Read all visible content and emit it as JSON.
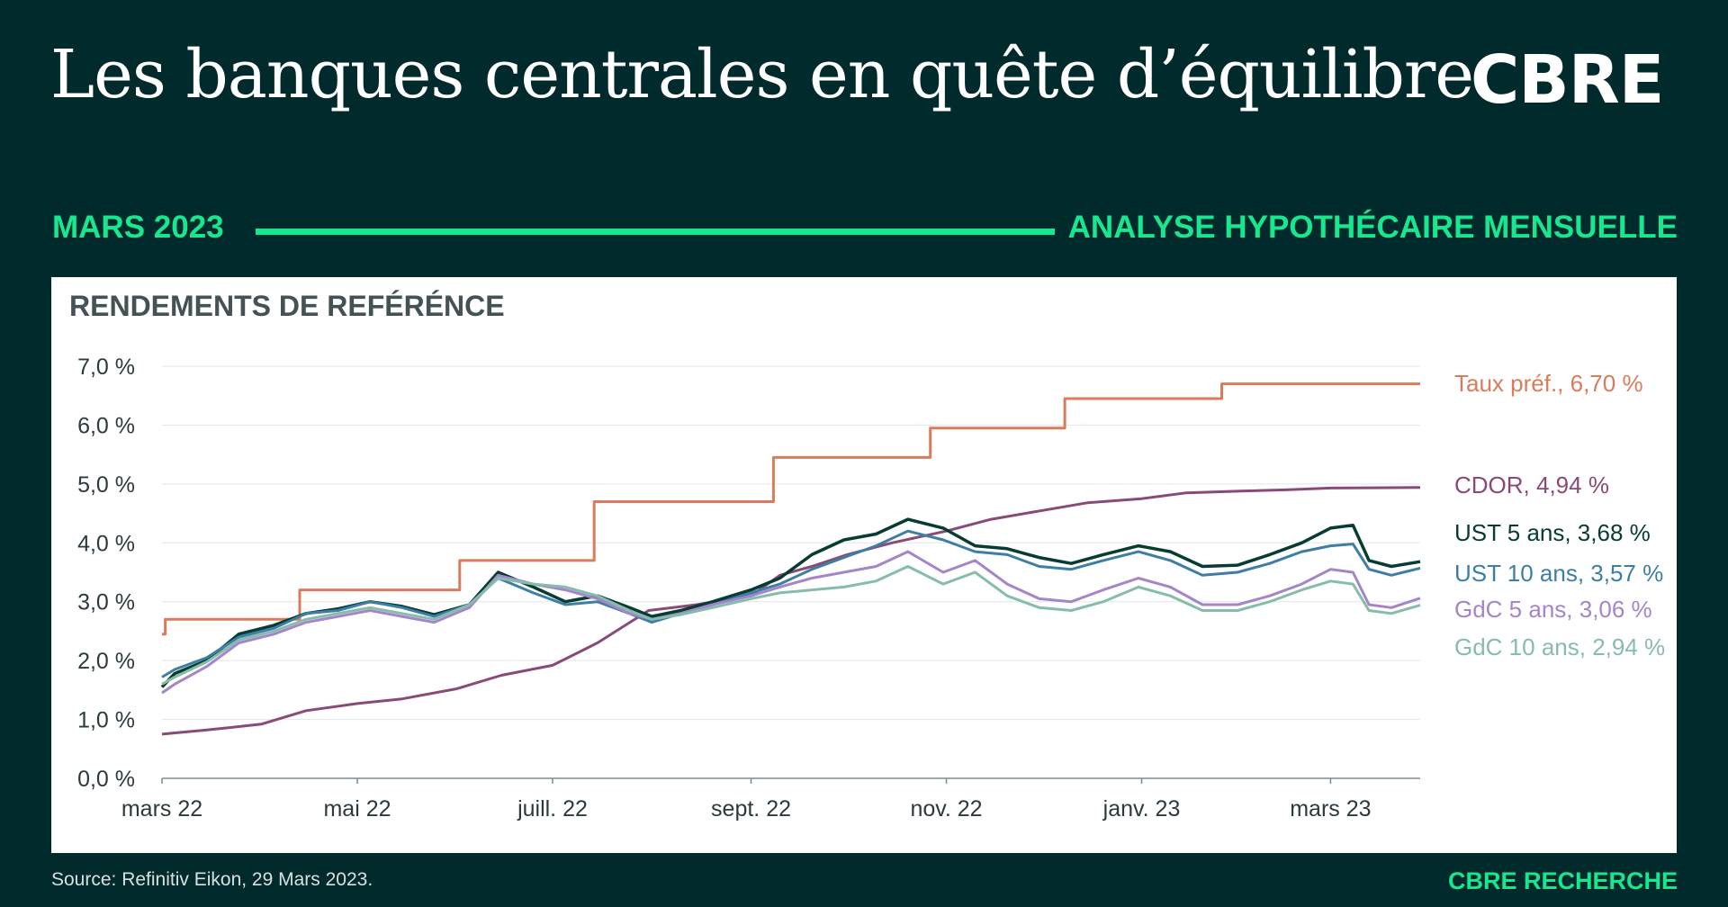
{
  "header": {
    "title": "Les banques centrales en quête d’équilibre",
    "logo": "CBRE"
  },
  "band": {
    "left": "MARS 2023",
    "right": "ANALYSE HYPOTHÉCAIRE MENSUELLE"
  },
  "footer": {
    "source": "Source: Refinitiv Eikon, 29 Mars 2023.",
    "credit": "CBRE RECHERCHE"
  },
  "colors": {
    "background": "#012a2d",
    "accent": "#17e88f",
    "taux": "#d97c5b",
    "cdor": "#8a4a78",
    "ust5": "#073c32",
    "ust10": "#3d7ea6",
    "gdc5": "#a585c9",
    "gdc10": "#86bcab"
  },
  "chart_data": {
    "type": "line",
    "title": "RENDEMENTS DE REFÉRÉNCE",
    "xlabel": "",
    "ylabel": "",
    "ylim": [
      0,
      7
    ],
    "y_ticks": [
      "0,0 %",
      "1,0 %",
      "2,0 %",
      "3,0 %",
      "4,0 %",
      "5,0 %",
      "6,0 %",
      "7,0 %"
    ],
    "x_range": [
      "2022-03-01",
      "2023-03-29"
    ],
    "x_ticks": [
      {
        "date": "2022-03-01",
        "label": "mars 22"
      },
      {
        "date": "2022-05-01",
        "label": "mai 22"
      },
      {
        "date": "2022-07-01",
        "label": "juill. 22"
      },
      {
        "date": "2022-09-01",
        "label": "sept. 22"
      },
      {
        "date": "2022-11-01",
        "label": "nov. 22"
      },
      {
        "date": "2023-01-01",
        "label": "janv. 23"
      },
      {
        "date": "2023-03-01",
        "label": "mars 23"
      }
    ],
    "grid": true,
    "legend": "right",
    "series": [
      {
        "name": "Taux préf.",
        "label": "Taux préf., 6,70 %",
        "color_key": "taux",
        "step": true,
        "points": [
          [
            "2022-03-01",
            2.45
          ],
          [
            "2022-03-02",
            2.7
          ],
          [
            "2022-04-13",
            3.2
          ],
          [
            "2022-06-02",
            3.7
          ],
          [
            "2022-07-14",
            4.7
          ],
          [
            "2022-09-08",
            5.45
          ],
          [
            "2022-10-27",
            5.95
          ],
          [
            "2022-12-08",
            6.45
          ],
          [
            "2023-01-26",
            6.7
          ],
          [
            "2023-03-29",
            6.7
          ]
        ]
      },
      {
        "name": "CDOR",
        "label": "CDOR, 4,94 %",
        "color_key": "cdor",
        "points": [
          [
            "2022-03-01",
            0.75
          ],
          [
            "2022-03-15",
            0.82
          ],
          [
            "2022-04-01",
            0.92
          ],
          [
            "2022-04-15",
            1.15
          ],
          [
            "2022-05-01",
            1.27
          ],
          [
            "2022-05-15",
            1.35
          ],
          [
            "2022-06-01",
            1.52
          ],
          [
            "2022-06-15",
            1.75
          ],
          [
            "2022-07-01",
            1.92
          ],
          [
            "2022-07-15",
            2.3
          ],
          [
            "2022-07-31",
            2.85
          ],
          [
            "2022-08-15",
            2.95
          ],
          [
            "2022-09-01",
            3.1
          ],
          [
            "2022-09-10",
            3.45
          ],
          [
            "2022-09-20",
            3.6
          ],
          [
            "2022-10-01",
            3.8
          ],
          [
            "2022-10-15",
            4.0
          ],
          [
            "2022-11-01",
            4.2
          ],
          [
            "2022-11-15",
            4.4
          ],
          [
            "2022-12-01",
            4.55
          ],
          [
            "2022-12-15",
            4.68
          ],
          [
            "2023-01-01",
            4.75
          ],
          [
            "2023-01-15",
            4.85
          ],
          [
            "2023-02-01",
            4.88
          ],
          [
            "2023-02-15",
            4.9
          ],
          [
            "2023-03-01",
            4.93
          ],
          [
            "2023-03-29",
            4.94
          ]
        ]
      },
      {
        "name": "UST 5 ans",
        "label": "UST 5 ans, 3,68 %",
        "color_key": "ust5",
        "points": [
          [
            "2022-03-01",
            1.55
          ],
          [
            "2022-03-05",
            1.78
          ],
          [
            "2022-03-15",
            2.0
          ],
          [
            "2022-03-25",
            2.45
          ],
          [
            "2022-04-05",
            2.6
          ],
          [
            "2022-04-15",
            2.8
          ],
          [
            "2022-04-25",
            2.88
          ],
          [
            "2022-05-05",
            3.0
          ],
          [
            "2022-05-15",
            2.92
          ],
          [
            "2022-05-25",
            2.78
          ],
          [
            "2022-06-05",
            2.95
          ],
          [
            "2022-06-14",
            3.5
          ],
          [
            "2022-06-25",
            3.25
          ],
          [
            "2022-07-05",
            3.0
          ],
          [
            "2022-07-15",
            3.1
          ],
          [
            "2022-07-25",
            2.9
          ],
          [
            "2022-08-01",
            2.75
          ],
          [
            "2022-08-10",
            2.85
          ],
          [
            "2022-08-20",
            3.0
          ],
          [
            "2022-09-01",
            3.2
          ],
          [
            "2022-09-10",
            3.4
          ],
          [
            "2022-09-20",
            3.8
          ],
          [
            "2022-09-30",
            4.05
          ],
          [
            "2022-10-10",
            4.15
          ],
          [
            "2022-10-20",
            4.4
          ],
          [
            "2022-10-31",
            4.25
          ],
          [
            "2022-11-10",
            3.95
          ],
          [
            "2022-11-20",
            3.9
          ],
          [
            "2022-11-30",
            3.75
          ],
          [
            "2022-12-10",
            3.65
          ],
          [
            "2022-12-20",
            3.8
          ],
          [
            "2022-12-31",
            3.95
          ],
          [
            "2023-01-10",
            3.85
          ],
          [
            "2023-01-20",
            3.6
          ],
          [
            "2023-01-31",
            3.62
          ],
          [
            "2023-02-10",
            3.8
          ],
          [
            "2023-02-20",
            4.0
          ],
          [
            "2023-03-01",
            4.25
          ],
          [
            "2023-03-08",
            4.3
          ],
          [
            "2023-03-13",
            3.7
          ],
          [
            "2023-03-20",
            3.6
          ],
          [
            "2023-03-29",
            3.68
          ]
        ]
      },
      {
        "name": "UST 10 ans",
        "label": "UST 10 ans, 3,57 %",
        "color_key": "ust10",
        "points": [
          [
            "2022-03-01",
            1.72
          ],
          [
            "2022-03-05",
            1.85
          ],
          [
            "2022-03-15",
            2.05
          ],
          [
            "2022-03-25",
            2.4
          ],
          [
            "2022-04-05",
            2.55
          ],
          [
            "2022-04-15",
            2.8
          ],
          [
            "2022-04-25",
            2.85
          ],
          [
            "2022-05-05",
            3.0
          ],
          [
            "2022-05-15",
            2.9
          ],
          [
            "2022-05-25",
            2.75
          ],
          [
            "2022-06-05",
            2.95
          ],
          [
            "2022-06-14",
            3.4
          ],
          [
            "2022-06-25",
            3.15
          ],
          [
            "2022-07-05",
            2.95
          ],
          [
            "2022-07-15",
            3.0
          ],
          [
            "2022-07-25",
            2.8
          ],
          [
            "2022-08-01",
            2.65
          ],
          [
            "2022-08-10",
            2.8
          ],
          [
            "2022-08-20",
            2.95
          ],
          [
            "2022-09-01",
            3.15
          ],
          [
            "2022-09-10",
            3.3
          ],
          [
            "2022-09-20",
            3.55
          ],
          [
            "2022-09-30",
            3.75
          ],
          [
            "2022-10-10",
            3.95
          ],
          [
            "2022-10-20",
            4.2
          ],
          [
            "2022-10-31",
            4.05
          ],
          [
            "2022-11-10",
            3.85
          ],
          [
            "2022-11-20",
            3.8
          ],
          [
            "2022-11-30",
            3.6
          ],
          [
            "2022-12-10",
            3.55
          ],
          [
            "2022-12-20",
            3.7
          ],
          [
            "2022-12-31",
            3.85
          ],
          [
            "2023-01-10",
            3.7
          ],
          [
            "2023-01-20",
            3.45
          ],
          [
            "2023-01-31",
            3.5
          ],
          [
            "2023-02-10",
            3.65
          ],
          [
            "2023-02-20",
            3.85
          ],
          [
            "2023-03-01",
            3.95
          ],
          [
            "2023-03-08",
            3.98
          ],
          [
            "2023-03-13",
            3.55
          ],
          [
            "2023-03-20",
            3.45
          ],
          [
            "2023-03-29",
            3.57
          ]
        ]
      },
      {
        "name": "GdC 5 ans",
        "label": "GdC 5 ans, 3,06 %",
        "color_key": "gdc5",
        "points": [
          [
            "2022-03-01",
            1.45
          ],
          [
            "2022-03-05",
            1.6
          ],
          [
            "2022-03-15",
            1.9
          ],
          [
            "2022-03-25",
            2.3
          ],
          [
            "2022-04-05",
            2.45
          ],
          [
            "2022-04-15",
            2.65
          ],
          [
            "2022-04-25",
            2.75
          ],
          [
            "2022-05-05",
            2.85
          ],
          [
            "2022-05-15",
            2.75
          ],
          [
            "2022-05-25",
            2.65
          ],
          [
            "2022-06-05",
            2.9
          ],
          [
            "2022-06-14",
            3.45
          ],
          [
            "2022-06-25",
            3.3
          ],
          [
            "2022-07-05",
            3.2
          ],
          [
            "2022-07-15",
            3.05
          ],
          [
            "2022-07-25",
            2.8
          ],
          [
            "2022-08-01",
            2.7
          ],
          [
            "2022-08-10",
            2.8
          ],
          [
            "2022-08-20",
            2.95
          ],
          [
            "2022-09-01",
            3.1
          ],
          [
            "2022-09-10",
            3.25
          ],
          [
            "2022-09-20",
            3.4
          ],
          [
            "2022-09-30",
            3.5
          ],
          [
            "2022-10-10",
            3.6
          ],
          [
            "2022-10-20",
            3.85
          ],
          [
            "2022-10-31",
            3.5
          ],
          [
            "2022-11-10",
            3.7
          ],
          [
            "2022-11-20",
            3.3
          ],
          [
            "2022-11-30",
            3.05
          ],
          [
            "2022-12-10",
            3.0
          ],
          [
            "2022-12-20",
            3.2
          ],
          [
            "2022-12-31",
            3.4
          ],
          [
            "2023-01-10",
            3.25
          ],
          [
            "2023-01-20",
            2.95
          ],
          [
            "2023-01-31",
            2.95
          ],
          [
            "2023-02-10",
            3.1
          ],
          [
            "2023-02-20",
            3.3
          ],
          [
            "2023-03-01",
            3.55
          ],
          [
            "2023-03-08",
            3.5
          ],
          [
            "2023-03-13",
            2.95
          ],
          [
            "2023-03-20",
            2.9
          ],
          [
            "2023-03-29",
            3.06
          ]
        ]
      },
      {
        "name": "GdC 10 ans",
        "label": "GdC 10 ans, 2,94 %",
        "color_key": "gdc10",
        "points": [
          [
            "2022-03-01",
            1.6
          ],
          [
            "2022-03-05",
            1.72
          ],
          [
            "2022-03-15",
            1.98
          ],
          [
            "2022-03-25",
            2.35
          ],
          [
            "2022-04-05",
            2.5
          ],
          [
            "2022-04-15",
            2.7
          ],
          [
            "2022-04-25",
            2.8
          ],
          [
            "2022-05-05",
            2.9
          ],
          [
            "2022-05-15",
            2.8
          ],
          [
            "2022-05-25",
            2.7
          ],
          [
            "2022-06-05",
            2.95
          ],
          [
            "2022-06-14",
            3.4
          ],
          [
            "2022-06-25",
            3.3
          ],
          [
            "2022-07-05",
            3.25
          ],
          [
            "2022-07-15",
            3.1
          ],
          [
            "2022-07-25",
            2.85
          ],
          [
            "2022-08-01",
            2.7
          ],
          [
            "2022-08-10",
            2.78
          ],
          [
            "2022-08-20",
            2.9
          ],
          [
            "2022-09-01",
            3.05
          ],
          [
            "2022-09-10",
            3.15
          ],
          [
            "2022-09-20",
            3.2
          ],
          [
            "2022-09-30",
            3.25
          ],
          [
            "2022-10-10",
            3.35
          ],
          [
            "2022-10-20",
            3.6
          ],
          [
            "2022-10-31",
            3.3
          ],
          [
            "2022-11-10",
            3.5
          ],
          [
            "2022-11-20",
            3.1
          ],
          [
            "2022-11-30",
            2.9
          ],
          [
            "2022-12-10",
            2.85
          ],
          [
            "2022-12-20",
            3.0
          ],
          [
            "2022-12-31",
            3.25
          ],
          [
            "2023-01-10",
            3.1
          ],
          [
            "2023-01-20",
            2.85
          ],
          [
            "2023-01-31",
            2.85
          ],
          [
            "2023-02-10",
            3.0
          ],
          [
            "2023-02-20",
            3.2
          ],
          [
            "2023-03-01",
            3.35
          ],
          [
            "2023-03-08",
            3.3
          ],
          [
            "2023-03-13",
            2.85
          ],
          [
            "2023-03-20",
            2.8
          ],
          [
            "2023-03-29",
            2.94
          ]
        ]
      }
    ]
  }
}
